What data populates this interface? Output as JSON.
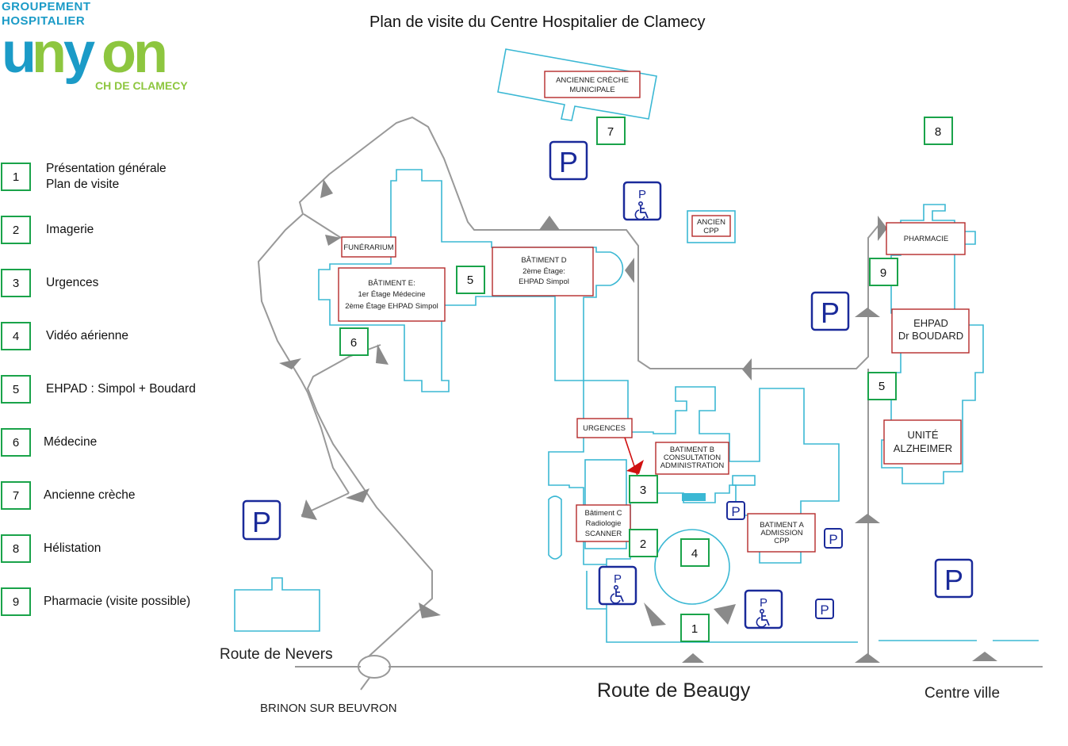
{
  "title": "Plan de visite du Centre Hospitalier de Clamecy",
  "logo": {
    "line1": "GROUPEMENT",
    "line2": "HOSPITALIER",
    "brand_u": "u",
    "brand_n": "n",
    "brand_y": "y",
    "brand_on": "on",
    "sub": "CH DE CLAMECY",
    "colors": {
      "teal": "#1b9bc7",
      "green": "#8dc63f"
    }
  },
  "legend": [
    {
      "num": "1",
      "lines": [
        "Présentation générale",
        "Plan de visite"
      ]
    },
    {
      "num": "2",
      "lines": [
        "Imagerie"
      ]
    },
    {
      "num": "3",
      "lines": [
        "Urgences"
      ]
    },
    {
      "num": "4",
      "lines": [
        "Vidéo aérienne"
      ]
    },
    {
      "num": "5",
      "lines": [
        "EHPAD : Simpol + Boudard"
      ]
    },
    {
      "num": "6",
      "lines": [
        "Médecine"
      ]
    },
    {
      "num": "7",
      "lines": [
        "Ancienne crèche"
      ]
    },
    {
      "num": "8",
      "lines": [
        "Hélistation"
      ]
    },
    {
      "num": "9",
      "lines": [
        "Pharmacie (visite possible)"
      ]
    }
  ],
  "buildings": {
    "creche": [
      "ANCIENNE CRÈCHE",
      "MUNICIPALE"
    ],
    "funerarium": [
      "FUNÉRARIUM"
    ],
    "bat_e": [
      "BÂTIMENT E:",
      "1er Étage Médecine",
      "2ème Étage EHPAD Simpol"
    ],
    "bat_d": [
      "BÂTIMENT D",
      "2ème Étage:",
      "EHPAD Simpol"
    ],
    "ancien_cpp": [
      "ANCIEN",
      "CPP"
    ],
    "pharmacie": [
      "PHARMACIE"
    ],
    "ehpad_boudard": [
      "EHPAD",
      "Dr BOUDARD"
    ],
    "alzheimer": [
      "UNITÉ",
      "ALZHEIMER"
    ],
    "urgences": [
      "URGENCES"
    ],
    "bat_b": [
      "BATIMENT B",
      "CONSULTATION",
      "ADMINISTRATION"
    ],
    "bat_c": [
      "Bâtiment C",
      "Radiologie",
      "SCANNER"
    ],
    "bat_a": [
      "BATIMENT A",
      "ADMISSION",
      "CPP"
    ]
  },
  "markers": {
    "m1": "1",
    "m2": "2",
    "m3": "3",
    "m4": "4",
    "m5a": "5",
    "m5b": "5",
    "m6": "6",
    "m7": "7",
    "m8": "8",
    "m9": "9"
  },
  "parking": {
    "label": "P"
  },
  "roads": {
    "nevers": "Route  de  Nevers",
    "beaugy": "Route  de  Beaugy",
    "centre": "Centre ville",
    "brinon": "BRINON SUR BEUVRON"
  },
  "colors": {
    "building_outline": "#3bb8d4",
    "label_border": "#b52a2a",
    "marker_border": "#1aa34a",
    "parking": "#1a2a9a",
    "road": "#999999",
    "arrow": "#8a8a8a",
    "pointer": "#d01010"
  }
}
